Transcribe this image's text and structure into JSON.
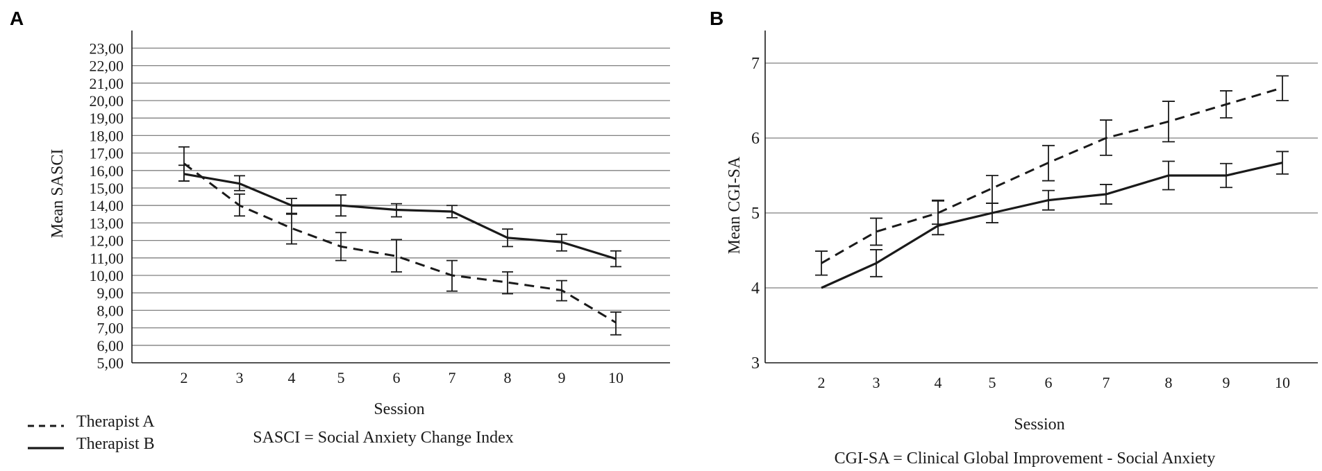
{
  "legend": {
    "therapist_a": "Therapist A",
    "therapist_b": "Therapist B"
  },
  "chart_data": [
    {
      "panel": "A",
      "type": "line",
      "title": "",
      "xlabel": "Session",
      "ylabel": "Mean SASCI",
      "note": "SASCI = Social Anxiety Change Index",
      "categories": [
        "2",
        "3",
        "4",
        "5",
        "6",
        "7",
        "8",
        "9",
        "10"
      ],
      "yticks": [
        "5,00",
        "6,00",
        "7,00",
        "8,00",
        "9,00",
        "10,00",
        "11,00",
        "12,00",
        "13,00",
        "14,00",
        "15,00",
        "16,00",
        "17,00",
        "18,00",
        "19,00",
        "20,00",
        "21,00",
        "22,00",
        "23,00"
      ],
      "ylim": [
        5,
        23.5
      ],
      "series": [
        {
          "name": "Therapist A",
          "style": "dashed",
          "values": [
            16.4,
            14.0,
            12.7,
            11.65,
            11.1,
            10.0,
            9.6,
            9.15,
            7.3
          ],
          "error_low": [
            15.4,
            13.4,
            11.8,
            10.85,
            10.2,
            9.1,
            8.95,
            8.55,
            6.6
          ],
          "error_high": [
            17.35,
            14.65,
            13.5,
            12.45,
            12.05,
            10.85,
            10.2,
            9.7,
            7.9
          ]
        },
        {
          "name": "Therapist B",
          "style": "solid",
          "values": [
            15.8,
            15.25,
            14.0,
            14.0,
            13.75,
            13.65,
            12.15,
            11.9,
            10.95
          ],
          "error_low": [
            15.4,
            14.85,
            13.55,
            13.4,
            13.35,
            13.3,
            11.65,
            11.4,
            10.5
          ],
          "error_high": [
            16.3,
            15.7,
            14.4,
            14.6,
            14.1,
            14.0,
            12.65,
            12.35,
            11.4
          ]
        }
      ]
    },
    {
      "panel": "B",
      "type": "line",
      "title": "",
      "xlabel": "Session",
      "ylabel": "Mean CGI-SA",
      "note": "CGI-SA = Clinical Global Improvement - Social Anxiety",
      "categories": [
        "2",
        "3",
        "4",
        "5",
        "6",
        "7",
        "8",
        "9",
        "10"
      ],
      "yticks": [
        "3",
        "4",
        "5",
        "6",
        "7"
      ],
      "ylim": [
        3,
        7.4
      ],
      "series": [
        {
          "name": "Therapist A",
          "style": "dashed",
          "values": [
            4.33,
            4.75,
            5.0,
            5.33,
            5.67,
            6.0,
            6.22,
            6.45,
            6.67
          ],
          "error_low": [
            4.17,
            4.57,
            4.85,
            5.13,
            5.43,
            5.77,
            5.95,
            6.27,
            6.5
          ],
          "error_high": [
            4.49,
            4.93,
            5.17,
            5.5,
            5.9,
            6.24,
            6.49,
            6.63,
            6.83
          ]
        },
        {
          "name": "Therapist B",
          "style": "solid",
          "values": [
            4.0,
            4.33,
            4.83,
            5.0,
            5.17,
            5.25,
            5.5,
            5.5,
            5.67
          ],
          "error_low": [
            4.0,
            4.15,
            4.71,
            4.87,
            5.04,
            5.12,
            5.31,
            5.34,
            5.52
          ],
          "error_high": [
            4.0,
            4.51,
            5.16,
            5.13,
            5.3,
            5.38,
            5.69,
            5.66,
            5.82
          ]
        }
      ]
    }
  ]
}
